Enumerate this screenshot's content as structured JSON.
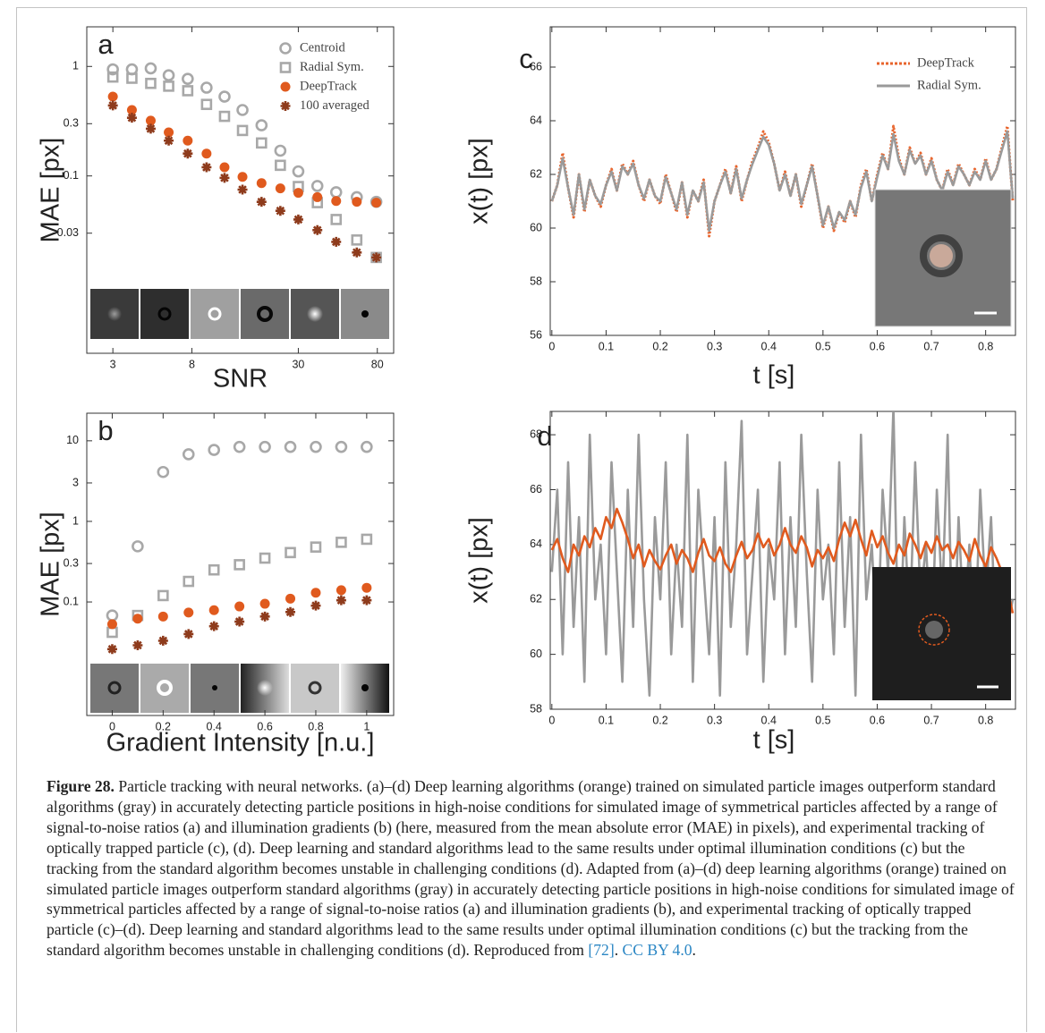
{
  "chart_data": [
    {
      "type": "scatter",
      "panel_label": "a",
      "xscale": "log",
      "yscale": "log",
      "x_label": "SNR",
      "y_label": "MAE [px]",
      "legend": "upper right",
      "x": [
        3,
        3.8,
        4.8,
        6,
        7.6,
        9.6,
        12,
        15,
        19,
        24,
        30,
        38,
        48,
        62,
        79
      ],
      "xlim": [
        2.17,
        98
      ],
      "xticks": [
        3,
        8,
        30,
        80
      ],
      "ylim": [
        0.0024,
        2.3
      ],
      "yticks": [
        1,
        0.3,
        0.1,
        0.03
      ],
      "series": [
        {
          "name": "Centroid",
          "color": "#a8a8a8",
          "marker": "circle-open",
          "values": [
            0.94,
            0.94,
            0.96,
            0.83,
            0.77,
            0.64,
            0.53,
            0.4,
            0.29,
            0.17,
            0.11,
            0.081,
            0.071,
            0.064,
            0.058
          ]
        },
        {
          "name": "Radial Sym.",
          "color": "#a8a8a8",
          "marker": "square-open",
          "values": [
            0.8,
            0.78,
            0.7,
            0.66,
            0.6,
            0.45,
            0.35,
            0.26,
            0.2,
            0.125,
            0.08,
            0.057,
            0.04,
            0.026,
            0.018
          ]
        },
        {
          "name": "DeepTrack",
          "color": "#e05a1e",
          "marker": "circle",
          "values": [
            0.53,
            0.4,
            0.32,
            0.25,
            0.21,
            0.16,
            0.12,
            0.098,
            0.086,
            0.077,
            0.07,
            0.064,
            0.059,
            0.058,
            0.057
          ]
        },
        {
          "name": "100 averaged",
          "color": "#8e3b1c",
          "marker": "star",
          "values": [
            0.44,
            0.34,
            0.27,
            0.21,
            0.16,
            0.12,
            0.096,
            0.075,
            0.058,
            0.048,
            0.04,
            0.032,
            0.025,
            0.02,
            0.018
          ]
        }
      ]
    },
    {
      "type": "scatter",
      "panel_label": "b",
      "yscale": "log",
      "x_label": "Gradient Intensity [n.u.]",
      "y_label": "MAE [px]",
      "x": [
        0,
        0.1,
        0.2,
        0.3,
        0.4,
        0.5,
        0.6,
        0.7,
        0.8,
        0.9,
        1
      ],
      "xlim": [
        -0.1,
        1.106
      ],
      "xticks": [
        0,
        0.2,
        0.4,
        0.6,
        0.8,
        1
      ],
      "ylim": [
        0.0039,
        22
      ],
      "yticks": [
        10,
        3,
        1,
        0.3,
        0.1
      ],
      "series": [
        {
          "color": "#a8a8a8",
          "marker": "circle-open",
          "values": [
            0.068,
            0.49,
            4.1,
            6.8,
            7.7,
            8.4,
            8.4,
            8.4,
            8.4,
            8.4,
            8.4
          ]
        },
        {
          "color": "#a8a8a8",
          "marker": "square-open",
          "values": [
            0.042,
            0.068,
            0.12,
            0.18,
            0.25,
            0.29,
            0.35,
            0.41,
            0.48,
            0.55,
            0.6
          ]
        },
        {
          "color": "#e05a1e",
          "marker": "circle",
          "values": [
            0.053,
            0.062,
            0.066,
            0.074,
            0.079,
            0.088,
            0.095,
            0.11,
            0.13,
            0.14,
            0.15
          ]
        },
        {
          "color": "#8e3b1c",
          "marker": "star",
          "values": [
            0.026,
            0.029,
            0.033,
            0.04,
            0.05,
            0.057,
            0.066,
            0.075,
            0.09,
            0.105,
            0.105
          ]
        }
      ]
    },
    {
      "type": "line",
      "panel_label": "c",
      "x_label": "t [s]",
      "y_label": "x(t) [px]",
      "legend": "upper right",
      "x": [
        0,
        0.01,
        0.02,
        0.03,
        0.04,
        0.05,
        0.06,
        0.07,
        0.08,
        0.09,
        0.1,
        0.11,
        0.12,
        0.13,
        0.14,
        0.15,
        0.16,
        0.17,
        0.18,
        0.19,
        0.2,
        0.21,
        0.22,
        0.23,
        0.24,
        0.25,
        0.26,
        0.27,
        0.28,
        0.29,
        0.3,
        0.31,
        0.32,
        0.33,
        0.34,
        0.35,
        0.36,
        0.37,
        0.38,
        0.39,
        0.4,
        0.41,
        0.42,
        0.43,
        0.44,
        0.45,
        0.46,
        0.47,
        0.48,
        0.49,
        0.5,
        0.51,
        0.52,
        0.53,
        0.54,
        0.55,
        0.56,
        0.57,
        0.58,
        0.59,
        0.6,
        0.61,
        0.62,
        0.63,
        0.64,
        0.65,
        0.66,
        0.67,
        0.68,
        0.69,
        0.7,
        0.71,
        0.72,
        0.73,
        0.74,
        0.75,
        0.76,
        0.77,
        0.78,
        0.79,
        0.8,
        0.81,
        0.82,
        0.83,
        0.84,
        0.85
      ],
      "xlim": [
        -0.003,
        0.855
      ],
      "xticks": [
        0,
        0.1,
        0.2,
        0.3,
        0.4,
        0.5,
        0.6,
        0.7,
        0.8
      ],
      "ylim": [
        56,
        67.5
      ],
      "yticks": [
        56,
        58,
        60,
        62,
        64,
        66
      ],
      "series": [
        {
          "name": "DeepTrack",
          "color": "#e8642c",
          "dash": true,
          "values": [
            61.0,
            61.6,
            62.8,
            61.5,
            60.4,
            62.0,
            60.6,
            61.8,
            61.2,
            60.8,
            61.6,
            62.2,
            61.4,
            62.4,
            62.0,
            62.5,
            61.6,
            61.0,
            61.8,
            61.2,
            60.9,
            62.0,
            61.3,
            60.6,
            61.7,
            60.4,
            61.4,
            61.0,
            61.8,
            59.7,
            61.0,
            61.6,
            62.2,
            61.3,
            62.3,
            61.0,
            61.8,
            62.5,
            63.0,
            63.6,
            63.2,
            62.4,
            61.4,
            62.1,
            61.2,
            62.0,
            60.8,
            61.6,
            62.4,
            61.2,
            60.0,
            60.8,
            59.9,
            60.6,
            60.2,
            61.0,
            60.4,
            61.6,
            62.2,
            61.0,
            62.0,
            62.8,
            62.2,
            63.8,
            62.6,
            62.0,
            63.0,
            62.4,
            62.8,
            62.0,
            62.6,
            61.8,
            61.4,
            62.2,
            61.6,
            62.4,
            62.0,
            61.6,
            62.2,
            61.8,
            62.6,
            61.8,
            62.2,
            63.0,
            63.8,
            61.0
          ]
        },
        {
          "name": "Radial Sym.",
          "color": "#9a9a9a",
          "values": [
            61.0,
            61.6,
            62.6,
            61.5,
            60.5,
            62.0,
            60.7,
            61.8,
            61.2,
            60.9,
            61.6,
            62.1,
            61.4,
            62.3,
            62.0,
            62.4,
            61.6,
            61.1,
            61.8,
            61.2,
            61.0,
            61.9,
            61.3,
            60.7,
            61.7,
            60.5,
            61.4,
            61.0,
            61.7,
            59.9,
            61.0,
            61.6,
            62.1,
            61.3,
            62.2,
            61.1,
            61.8,
            62.4,
            62.9,
            63.4,
            63.1,
            62.4,
            61.4,
            62.0,
            61.2,
            62.0,
            60.9,
            61.6,
            62.3,
            61.2,
            60.1,
            60.8,
            60.0,
            60.6,
            60.3,
            61.0,
            60.5,
            61.5,
            62.1,
            61.0,
            61.9,
            62.7,
            62.2,
            63.5,
            62.5,
            62.0,
            62.9,
            62.4,
            62.7,
            62.0,
            62.5,
            61.8,
            61.4,
            62.1,
            61.6,
            62.3,
            62.0,
            61.6,
            62.1,
            61.8,
            62.5,
            61.8,
            62.2,
            62.9,
            63.6,
            61.1
          ]
        }
      ]
    },
    {
      "type": "line",
      "panel_label": "d",
      "x_label": "t [s]",
      "y_label": "x(t) [px]",
      "x": [
        0,
        0.01,
        0.02,
        0.03,
        0.04,
        0.05,
        0.06,
        0.07,
        0.08,
        0.09,
        0.1,
        0.11,
        0.12,
        0.13,
        0.14,
        0.15,
        0.16,
        0.17,
        0.18,
        0.19,
        0.2,
        0.21,
        0.22,
        0.23,
        0.24,
        0.25,
        0.26,
        0.27,
        0.28,
        0.29,
        0.3,
        0.31,
        0.32,
        0.33,
        0.34,
        0.35,
        0.36,
        0.37,
        0.38,
        0.39,
        0.4,
        0.41,
        0.42,
        0.43,
        0.44,
        0.45,
        0.46,
        0.47,
        0.48,
        0.49,
        0.5,
        0.51,
        0.52,
        0.53,
        0.54,
        0.55,
        0.56,
        0.57,
        0.58,
        0.59,
        0.6,
        0.61,
        0.62,
        0.63,
        0.64,
        0.65,
        0.66,
        0.67,
        0.68,
        0.69,
        0.7,
        0.71,
        0.72,
        0.73,
        0.74,
        0.75,
        0.76,
        0.77,
        0.78,
        0.79,
        0.8,
        0.81,
        0.82,
        0.83,
        0.84,
        0.85
      ],
      "xlim": [
        -0.003,
        0.855
      ],
      "xticks": [
        0,
        0.1,
        0.2,
        0.3,
        0.4,
        0.5,
        0.6,
        0.7,
        0.8
      ],
      "ylim": [
        58,
        68.85
      ],
      "yticks": [
        58,
        60,
        62,
        64,
        66,
        68
      ],
      "series": [
        {
          "color": "#9a9a9a",
          "values": [
            63,
            66,
            60,
            67,
            61,
            65,
            59,
            68,
            62,
            64,
            60,
            67,
            63,
            59,
            66,
            61,
            68,
            62,
            58.5,
            65,
            62,
            67,
            60,
            64,
            61,
            68,
            59,
            66,
            63,
            60,
            65,
            58.5,
            67,
            61,
            64,
            68.5,
            60,
            63,
            66,
            59,
            64,
            62,
            67,
            60,
            65,
            61,
            68,
            63,
            59,
            66,
            62,
            64,
            60,
            67,
            61,
            65,
            58.5,
            68,
            62,
            64,
            60,
            66,
            63,
            69,
            59,
            65,
            61,
            67,
            62,
            64,
            60,
            66,
            62,
            68,
            59,
            65,
            61,
            64,
            60,
            66,
            62,
            65,
            60,
            63,
            61,
            62
          ]
        },
        {
          "color": "#e05a1e",
          "values": [
            63.8,
            64.2,
            63.5,
            63.0,
            64.0,
            63.6,
            64.3,
            63.9,
            64.6,
            64.2,
            65.0,
            64.6,
            65.3,
            64.8,
            64.2,
            63.5,
            64.0,
            63.2,
            63.8,
            63.4,
            63.1,
            63.6,
            64.0,
            63.3,
            63.8,
            63.5,
            63.0,
            63.7,
            64.2,
            63.6,
            63.4,
            63.9,
            63.3,
            63.0,
            63.6,
            64.1,
            63.5,
            63.8,
            64.4,
            63.9,
            64.2,
            63.6,
            64.0,
            64.6,
            64.0,
            63.7,
            64.3,
            63.9,
            63.2,
            63.8,
            63.5,
            63.9,
            63.4,
            64.2,
            64.8,
            64.3,
            64.9,
            64.2,
            63.6,
            64.5,
            63.9,
            64.3,
            63.7,
            63.3,
            64.0,
            63.6,
            64.4,
            64.0,
            63.5,
            64.1,
            63.7,
            64.3,
            63.8,
            64.0,
            63.5,
            64.1,
            63.8,
            63.4,
            64.2,
            63.6,
            63.2,
            63.9,
            63.5,
            63.0,
            62.4,
            61.5
          ]
        }
      ]
    }
  ],
  "caption": {
    "label": "Figure 28.",
    "parts": [
      {
        "text": "Particle tracking with neural networks. (a)–(d) Deep learning algorithms (orange) trained on simulated particle images outperform standard algorithms (gray) in accurately detecting particle positions in high-noise conditions for simulated image of symmetrical particles affected by a range of signal-to-noise ratios (a) and illumination gradients (b) (here, measured from the mean absolute error (MAE) in pixels), and experimental tracking of optically trapped particle (c), (d). Deep learning and standard algorithms lead to the same results under optimal illumination conditions (c) but the tracking from the standard algorithm becomes unstable in challenging conditions (d). Adapted from (a)–(d) deep learning algorithms (orange) trained on simulated particle images outperform standard algorithms (gray) in accurately detecting particle positions in high-noise conditions for simulated image of symmetrical particles affected by a range of signal-to-noise ratios (a) and illumination gradients (b), and experimental tracking of optically trapped particle (c)–(d). Deep learning and standard algorithms lead to the same results under optimal illumination conditions (c) but the tracking from the standard algorithm becomes unstable in challenging conditions (d). Reproduced from "
      },
      {
        "text": "[72]",
        "link": true
      },
      {
        "text": ". "
      },
      {
        "text": "CC BY 4.0",
        "link": true
      },
      {
        "text": "."
      }
    ]
  }
}
